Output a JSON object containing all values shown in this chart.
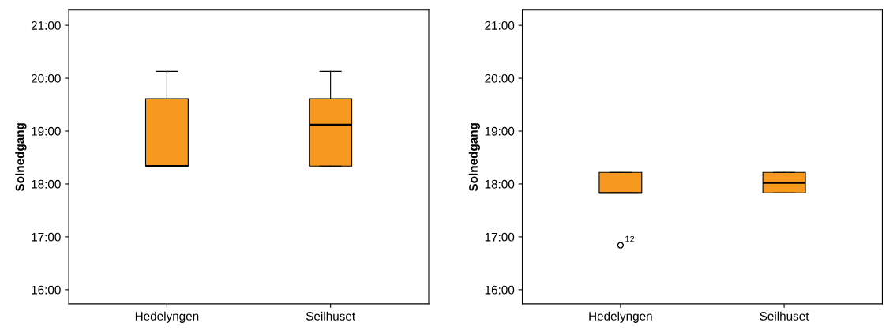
{
  "chart_data": [
    {
      "type": "box",
      "ylabel": "Solnedgang",
      "categories": [
        "Hedelyngen",
        "Seilhuset"
      ],
      "color": "#f7991f",
      "boxes": [
        {
          "low": 18.34,
          "q1": 18.34,
          "median": 18.34,
          "q3": 19.61,
          "high": 20.13
        },
        {
          "low": 18.34,
          "q1": 18.34,
          "median": 19.12,
          "q3": 19.61,
          "high": 20.13
        }
      ],
      "ylim": [
        15.73,
        21.29
      ],
      "yticks": [
        {
          "value": 16,
          "label": "16:00"
        },
        {
          "value": 17,
          "label": "17:00"
        },
        {
          "value": 18,
          "label": "18:00"
        },
        {
          "value": 19,
          "label": "19:00"
        },
        {
          "value": 20,
          "label": "20:00"
        },
        {
          "value": 21,
          "label": "21:00"
        }
      ],
      "grid": false
    },
    {
      "type": "box",
      "ylabel": "Solnedgang",
      "categories": [
        "Hedelyngen",
        "Seilhuset"
      ],
      "color": "#f7991f",
      "boxes": [
        {
          "low": 17.83,
          "q1": 17.83,
          "median": 17.83,
          "q3": 18.22,
          "high": 18.22,
          "outliers": [
            16.84
          ]
        },
        {
          "low": 17.83,
          "q1": 17.83,
          "median": 18.02,
          "q3": 18.22,
          "high": 18.22
        }
      ],
      "annotations": [
        "12"
      ],
      "ylim": [
        15.73,
        21.29
      ],
      "yticks": [
        {
          "value": 16,
          "label": "16:00"
        },
        {
          "value": 17,
          "label": "17:00"
        },
        {
          "value": 18,
          "label": "18:00"
        },
        {
          "value": 19,
          "label": "19:00"
        },
        {
          "value": 20,
          "label": "20:00"
        },
        {
          "value": 21,
          "label": "21:00"
        }
      ],
      "grid": false
    }
  ]
}
